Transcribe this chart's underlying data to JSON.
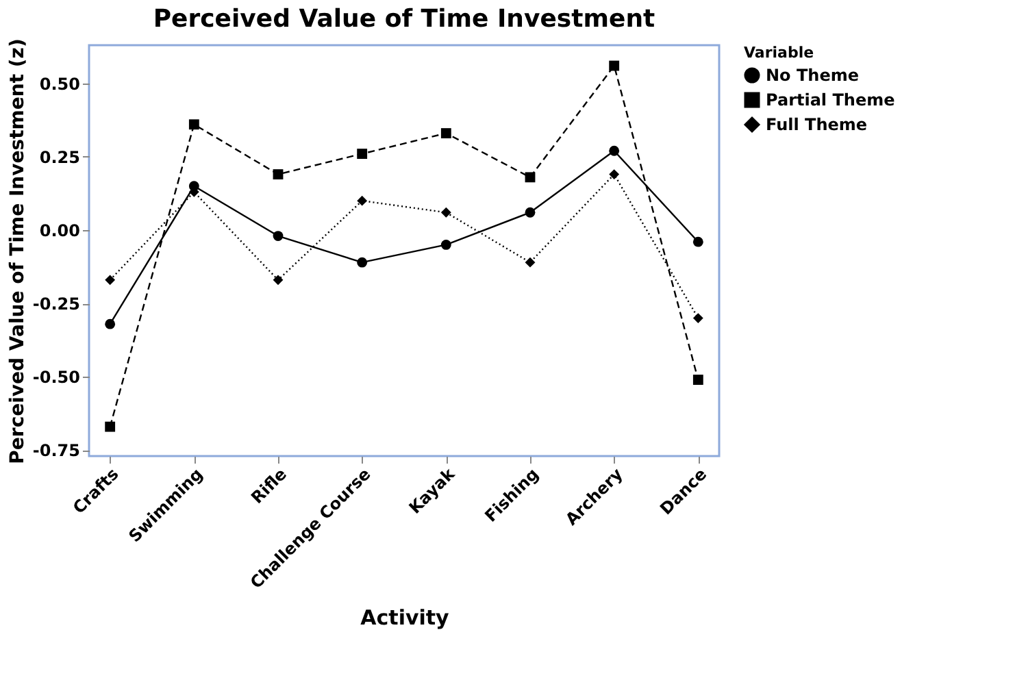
{
  "chart_data": {
    "type": "line",
    "title": "Perceived Value of Time Investment",
    "xlabel": "Activity",
    "ylabel": "Perceived Value of Time Investment (z)",
    "legend_title": "Variable",
    "categories": [
      "Crafts",
      "Swimming",
      "Rifle",
      "Challenge Course",
      "Kayak",
      "Fishing",
      "Archery",
      "Dance"
    ],
    "series": [
      {
        "name": "No Theme",
        "color": "#000000",
        "marker": "circle",
        "line_style": "solid",
        "values": [
          -0.32,
          0.15,
          -0.02,
          -0.11,
          -0.05,
          0.06,
          0.27,
          -0.04
        ]
      },
      {
        "name": "Partial Theme",
        "color": "#000000",
        "marker": "square",
        "line_style": "dashed",
        "values": [
          -0.67,
          0.36,
          0.19,
          0.26,
          0.33,
          0.18,
          0.56,
          -0.51
        ]
      },
      {
        "name": "Full Theme",
        "color": "#000000",
        "marker": "diamond",
        "line_style": "dotted",
        "values": [
          -0.17,
          0.13,
          -0.17,
          0.1,
          0.06,
          -0.11,
          0.19,
          -0.3
        ]
      }
    ],
    "ylim": [
      -0.77,
      0.63
    ],
    "yticks": [
      {
        "value": -0.75,
        "label": "-0.75"
      },
      {
        "value": -0.5,
        "label": "-0.50"
      },
      {
        "value": -0.25,
        "label": "-0.25"
      },
      {
        "value": 0,
        "label": "0.00"
      },
      {
        "value": 0.25,
        "label": "0.25"
      },
      {
        "value": 0.5,
        "label": "0.50"
      }
    ],
    "grid": false,
    "legend": "top right"
  }
}
